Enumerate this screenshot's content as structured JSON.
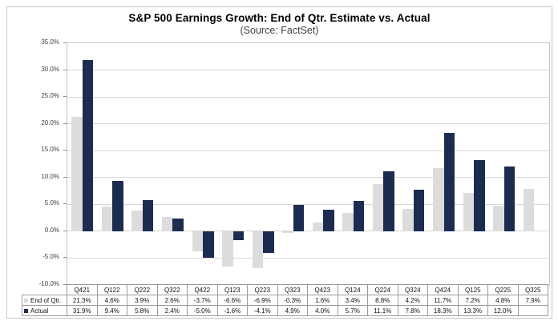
{
  "chart_data": {
    "type": "bar",
    "title": "S&P 500 Earnings Growth: End of Qtr. Estimate vs. Actual",
    "subtitle": "(Source: FactSet)",
    "categories": [
      "Q421",
      "Q122",
      "Q222",
      "Q322",
      "Q422",
      "Q123",
      "Q223",
      "Q323",
      "Q423",
      "Q124",
      "Q224",
      "Q324",
      "Q424",
      "Q125",
      "Q225",
      "Q325"
    ],
    "series": [
      {
        "name": "End of Qtr.",
        "color": "#dcdcdc",
        "values": [
          21.3,
          4.6,
          3.9,
          2.6,
          -3.7,
          -6.6,
          -6.9,
          -0.3,
          1.6,
          3.4,
          8.8,
          4.2,
          11.7,
          7.2,
          4.8,
          7.9
        ]
      },
      {
        "name": "Actual",
        "color": "#1c2b50",
        "values": [
          31.9,
          9.4,
          5.8,
          2.4,
          -5.0,
          -1.6,
          -4.1,
          4.9,
          4.0,
          5.7,
          11.1,
          7.8,
          18.3,
          13.3,
          12.0,
          null
        ]
      }
    ],
    "ylim": [
      -10,
      35
    ],
    "ytick_step": 5,
    "ytick_labels": [
      "35.0%",
      "30.0%",
      "25.0%",
      "20.0%",
      "15.0%",
      "10.0%",
      "5.0%",
      "0.0%",
      "-5.0%",
      "-10.0%"
    ],
    "grid": true,
    "legend_position": "table-left"
  },
  "table": {
    "header": [
      "Q421",
      "Q122",
      "Q222",
      "Q322",
      "Q422",
      "Q123",
      "Q223",
      "Q323",
      "Q423",
      "Q124",
      "Q224",
      "Q324",
      "Q424",
      "Q125",
      "Q225",
      "Q325"
    ],
    "rows": [
      {
        "label": "End of Qtr.",
        "swatch_color": "#dcdcdc",
        "cells": [
          "21.3%",
          "4.6%",
          "3.9%",
          "2.6%",
          "-3.7%",
          "-6.6%",
          "-6.9%",
          "-0.3%",
          "1.6%",
          "3.4%",
          "8.8%",
          "4.2%",
          "11.7%",
          "7.2%",
          "4.8%",
          "7.9%"
        ]
      },
      {
        "label": "Actual",
        "swatch_color": "#1c2b50",
        "cells": [
          "31.9%",
          "9.4%",
          "5.8%",
          "2.4%",
          "-5.0%",
          "-1.6%",
          "-4.1%",
          "4.9%",
          "4.0%",
          "5.7%",
          "11.1%",
          "7.8%",
          "18.3%",
          "13.3%",
          "12.0%",
          ""
        ]
      }
    ]
  }
}
